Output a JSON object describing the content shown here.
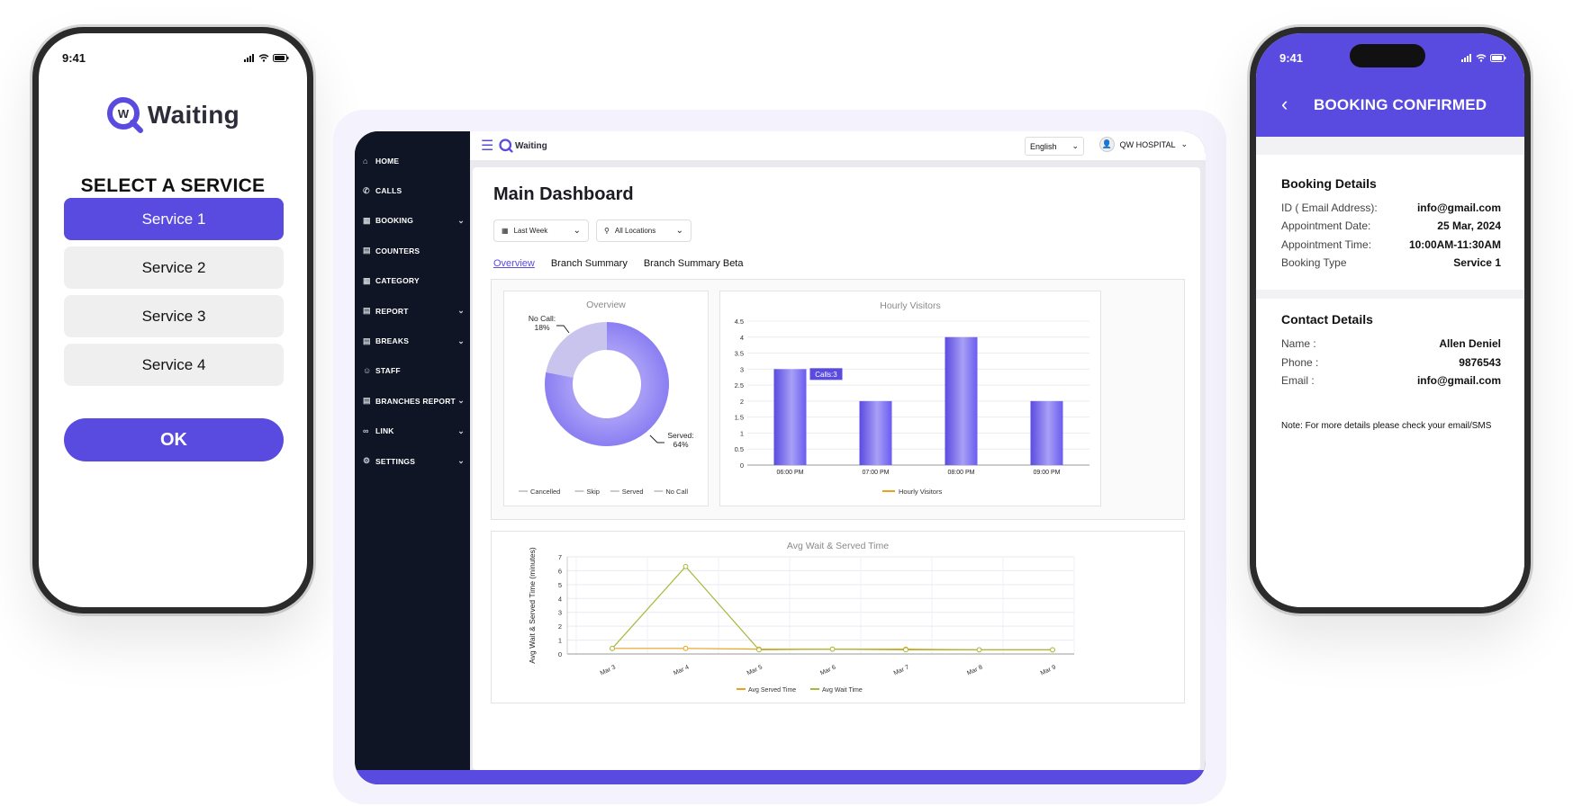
{
  "left_phone": {
    "time": "9:41",
    "logo_text": "Waiting",
    "logo_mark": "W",
    "title": "SELECT A SERVICE",
    "services": [
      "Service 1",
      "Service 2",
      "Service 3",
      "Service 4"
    ],
    "ok_label": "OK"
  },
  "tablet": {
    "sidebar": [
      {
        "label": "HOME",
        "icon": "home-icon",
        "glyph": "⌂",
        "chevron": false
      },
      {
        "label": "CALLS",
        "icon": "phone-icon",
        "glyph": "✆",
        "chevron": false
      },
      {
        "label": "BOOKING",
        "icon": "calendar-icon",
        "glyph": "▦",
        "chevron": true
      },
      {
        "label": "COUNTERS",
        "icon": "counter-icon",
        "glyph": "▤",
        "chevron": false
      },
      {
        "label": "CATEGORY",
        "icon": "grid-icon",
        "glyph": "▦",
        "chevron": false
      },
      {
        "label": "REPORT",
        "icon": "report-icon",
        "glyph": "▤",
        "chevron": true
      },
      {
        "label": "BREAKS",
        "icon": "breaks-icon",
        "glyph": "▤",
        "chevron": true
      },
      {
        "label": "STAFF",
        "icon": "staff-icon",
        "glyph": "☺",
        "chevron": false
      },
      {
        "label": "BRANCHES REPORT",
        "icon": "branch-report-icon",
        "glyph": "▤",
        "chevron": true
      },
      {
        "label": "LINK",
        "icon": "link-icon",
        "glyph": "∞",
        "chevron": true
      },
      {
        "label": "SETTINGS",
        "icon": "gear-icon",
        "glyph": "⚙",
        "chevron": true
      }
    ],
    "topbar": {
      "logo_text": "Waiting",
      "language": "English",
      "user": "QW HOSPITAL"
    },
    "title": "Main Dashboard",
    "filters": {
      "date": "Last Week",
      "location": "All Locations"
    },
    "tabs": [
      "Overview",
      "Branch Summary",
      "Branch Summary Beta"
    ],
    "active_tab": "Overview"
  },
  "chart_data": [
    {
      "type": "pie",
      "title": "Overview",
      "labels": [
        "Cancelled",
        "Skip",
        "Served",
        "No Call"
      ],
      "values": [
        0,
        0,
        64,
        18
      ],
      "annotations": [
        {
          "text": "No Call:",
          "value": "18%"
        },
        {
          "text": "Served:",
          "value": "64%"
        }
      ],
      "colors": {
        "Served": "#7c6ff0",
        "No Call": "#c9c4ee"
      },
      "legend": "bottom"
    },
    {
      "type": "bar",
      "title": "Hourly Visitors",
      "categories": [
        "06:00 PM",
        "07:00 PM",
        "08:00 PM",
        "09:00 PM"
      ],
      "series": [
        {
          "name": "Hourly Visitors",
          "values": [
            3,
            2,
            4,
            2
          ]
        }
      ],
      "ylim": [
        0,
        4.5
      ],
      "yticks": [
        0,
        0.5,
        1,
        1.5,
        2,
        2.5,
        3,
        3.5,
        4,
        4.5
      ],
      "tooltip": "Calls:3",
      "legend": "bottom",
      "bar_color": "#6a5cf0"
    },
    {
      "type": "line",
      "title": "Avg Wait & Served Time",
      "ylabel": "Avg Wait & Served Time (minutes)",
      "categories": [
        "Mar 3",
        "Mar 4",
        "Mar 5",
        "Mar 6",
        "Mar 7",
        "Mar 8",
        "Mar 9"
      ],
      "series": [
        {
          "name": "Avg Served Time",
          "values": [
            0.4,
            0.4,
            0.35,
            0.35,
            0.35,
            0.3,
            0.3
          ],
          "color": "#e8a21f"
        },
        {
          "name": "Avg Wait Time",
          "values": [
            0.4,
            6.3,
            0.3,
            0.35,
            0.3,
            0.3,
            0.3
          ],
          "color": "#a8b83a"
        }
      ],
      "ylim": [
        0,
        7
      ],
      "yticks": [
        0,
        1,
        2,
        3,
        4,
        5,
        6,
        7
      ],
      "legend": "bottom"
    }
  ],
  "right_phone": {
    "time": "9:41",
    "title": "BOOKING CONFIRMED",
    "booking_heading": "Booking Details",
    "booking_rows": [
      {
        "label": "ID ( Email Address):",
        "value": "info@gmail.com"
      },
      {
        "label": "Appointment Date:",
        "value": "25 Mar, 2024"
      },
      {
        "label": "Appointment Time:",
        "value": "10:00AM-11:30AM"
      },
      {
        "label": "Booking Type",
        "value": "Service 1"
      }
    ],
    "contact_heading": "Contact Details",
    "contact_rows": [
      {
        "label": "Name :",
        "value": "Allen Deniel"
      },
      {
        "label": "Phone :",
        "value": "9876543"
      },
      {
        "label": "Email :",
        "value": "info@gmail.com"
      }
    ],
    "note": "Note: For more details please check your email/SMS"
  }
}
